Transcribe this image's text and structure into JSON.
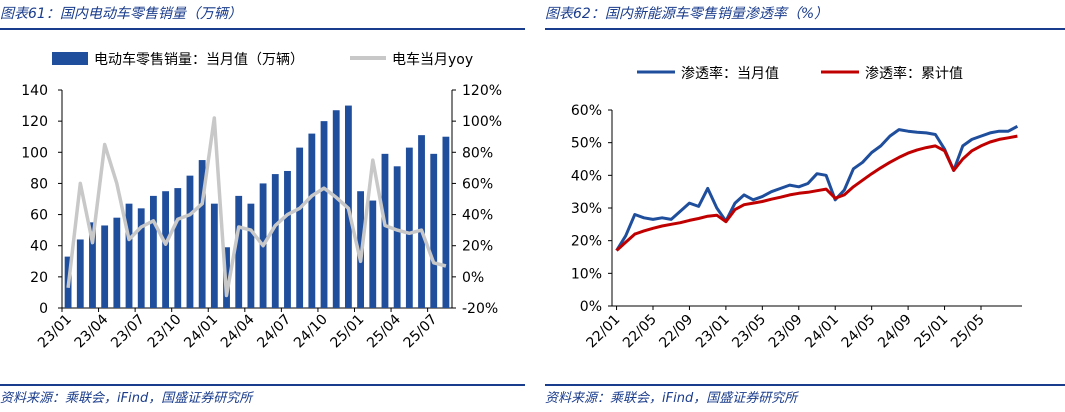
{
  "left": {
    "header": "图表61：国内电动车零售销量（万辆）",
    "footer": "资料来源：乘联会，iFind，国盛证券研究所",
    "chart_data": {
      "type": "bar",
      "series": [
        {
          "name": "电动车零售销量：当月值（万辆）",
          "type": "bar",
          "axis": "left",
          "color": "#1f4e9c",
          "values": [
            33,
            44,
            55,
            53,
            58,
            67,
            64,
            72,
            75,
            77,
            85,
            95,
            67,
            39,
            72,
            67,
            80,
            86,
            88,
            103,
            112,
            120,
            127,
            130,
            75,
            69,
            99,
            91,
            103,
            111,
            99,
            110
          ]
        },
        {
          "name": "电车当月yoy",
          "type": "line",
          "axis": "right",
          "color": "#c8c8c8",
          "values": [
            -7,
            60,
            22,
            85,
            60,
            24,
            32,
            36,
            21,
            37,
            40,
            47,
            102,
            -12,
            32,
            30,
            20,
            33,
            40,
            44,
            52,
            57,
            51,
            44,
            10,
            75,
            33,
            30,
            28,
            30,
            9,
            7
          ]
        }
      ],
      "x_tick_labels": [
        "23/01",
        "23/04",
        "23/07",
        "23/10",
        "24/01",
        "24/04",
        "24/07",
        "24/10",
        "25/01",
        "25/04",
        "25/07"
      ],
      "x_tick_every": 3,
      "ylim_left": [
        0,
        140
      ],
      "yticks_left": [
        "0",
        "20",
        "40",
        "60",
        "80",
        "100",
        "120",
        "140"
      ],
      "ylim_right": [
        -20,
        120
      ],
      "yticks_right": [
        "-20%",
        "0%",
        "20%",
        "40%",
        "60%",
        "80%",
        "100%",
        "120%"
      ],
      "legend": "top"
    }
  },
  "right": {
    "header": "图表62：国内新能源车零售销量渗透率（%）",
    "footer": "资料来源：乘联会，iFind，国盛证券研究所",
    "chart_data": {
      "type": "line",
      "series": [
        {
          "name": "渗透率：当月值",
          "color": "#1f4e9c",
          "values": [
            17,
            21.5,
            28,
            27,
            26.5,
            27,
            26.5,
            29,
            31.5,
            30.5,
            36,
            30,
            26,
            31.5,
            34,
            32.5,
            33.5,
            35,
            36,
            37,
            36.5,
            37.5,
            40.5,
            40,
            32.5,
            35.5,
            42,
            44,
            47,
            49,
            52,
            54,
            53.5,
            53.2,
            53,
            52.5,
            48,
            41.5,
            49,
            51,
            52,
            53,
            53.5,
            53.5,
            55
          ]
        },
        {
          "name": "渗透率：累计值",
          "color": "#c00000",
          "values": [
            17,
            19.5,
            22,
            23,
            23.8,
            24.5,
            25,
            25.5,
            26.2,
            26.8,
            27.5,
            27.8,
            25.8,
            29.5,
            31,
            31.5,
            32,
            32.7,
            33.3,
            34,
            34.5,
            34.8,
            35.3,
            35.8,
            33,
            34,
            36.5,
            38.5,
            40.5,
            42.3,
            44,
            45.5,
            46.8,
            47.8,
            48.5,
            49,
            47.5,
            41.5,
            45,
            47.5,
            49,
            50.2,
            51,
            51.5,
            52
          ]
        }
      ],
      "x_tick_labels": [
        "22/01",
        "22/05",
        "22/09",
        "23/01",
        "23/05",
        "23/09",
        "24/01",
        "24/05",
        "24/09",
        "25/01",
        "25/05"
      ],
      "x_tick_every": 4,
      "ylim": [
        0,
        60
      ],
      "yticks": [
        "0%",
        "10%",
        "20%",
        "30%",
        "40%",
        "50%",
        "60%"
      ],
      "legend": "top"
    }
  }
}
